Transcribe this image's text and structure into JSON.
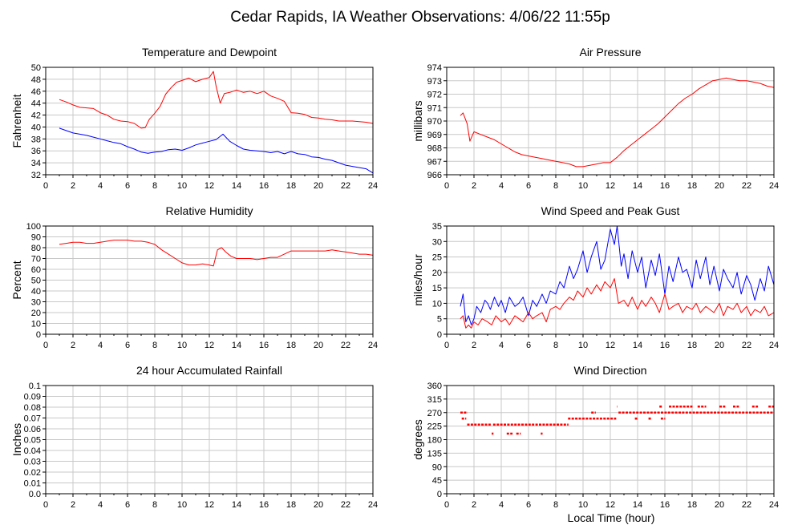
{
  "title": "Cedar Rapids, IA Weather Observations: 4/06/22 11:55p",
  "footer_xlabel": "Local Time (hour)",
  "colors": {
    "red": "#ff0000",
    "blue": "#0000ff",
    "grid": "#c8c8c8",
    "frame": "#000000"
  },
  "chart_data": [
    {
      "id": "temp",
      "type": "line",
      "title": "Temperature and Dewpoint",
      "xlabel": "",
      "ylabel": "Fahrenheit",
      "xlim": [
        0,
        24
      ],
      "ylim": [
        32,
        50
      ],
      "xticks": [
        2,
        4,
        6,
        8,
        10,
        12,
        14,
        16,
        18,
        20,
        22,
        24
      ],
      "yticks": [
        32,
        34,
        36,
        38,
        40,
        42,
        44,
        46,
        48,
        50
      ],
      "grid": true,
      "series": [
        {
          "color": "#ff0000",
          "x": [
            1.0,
            1.5,
            2.0,
            2.5,
            3.0,
            3.5,
            4.0,
            4.5,
            5.0,
            5.5,
            6.0,
            6.5,
            7.0,
            7.3,
            7.6,
            8.0,
            8.4,
            8.8,
            9.2,
            9.6,
            10.0,
            10.5,
            11.0,
            11.5,
            12.0,
            12.3,
            12.5,
            12.8,
            13.1,
            13.5,
            14.0,
            14.5,
            15.0,
            15.5,
            16.0,
            16.5,
            17.0,
            17.5,
            18.0,
            18.5,
            19.0,
            19.5,
            20.0,
            20.5,
            21.0,
            21.5,
            22.0,
            22.5,
            23.0,
            23.5,
            24.0
          ],
          "y": [
            44.6,
            44.2,
            43.7,
            43.3,
            43.2,
            43.1,
            42.4,
            42.0,
            41.3,
            41.0,
            40.9,
            40.6,
            39.8,
            39.9,
            41.3,
            42.3,
            43.5,
            45.5,
            46.6,
            47.5,
            47.8,
            48.2,
            47.6,
            48.0,
            48.3,
            49.3,
            46.8,
            44.0,
            45.6,
            45.8,
            46.2,
            45.8,
            46.0,
            45.6,
            46.0,
            45.2,
            44.8,
            44.3,
            42.4,
            42.3,
            42.1,
            41.6,
            41.5,
            41.3,
            41.2,
            41.0,
            41.0,
            41.0,
            40.9,
            40.8,
            40.6
          ]
        },
        {
          "color": "#0000ff",
          "x": [
            1.0,
            1.5,
            2.0,
            2.5,
            3.0,
            3.5,
            4.0,
            4.5,
            5.0,
            5.5,
            6.0,
            6.5,
            7.0,
            7.5,
            8.0,
            8.5,
            9.0,
            9.5,
            10.0,
            10.5,
            11.0,
            11.5,
            12.0,
            12.5,
            13.0,
            13.5,
            14.0,
            14.5,
            15.0,
            15.5,
            16.0,
            16.5,
            17.0,
            17.5,
            18.0,
            18.5,
            19.0,
            19.5,
            20.0,
            20.5,
            21.0,
            21.5,
            22.0,
            22.5,
            23.0,
            23.5,
            24.0
          ],
          "y": [
            39.8,
            39.4,
            39.0,
            38.8,
            38.6,
            38.3,
            38.0,
            37.7,
            37.4,
            37.2,
            36.7,
            36.3,
            35.8,
            35.6,
            35.8,
            35.9,
            36.2,
            36.3,
            36.1,
            36.5,
            37.0,
            37.3,
            37.6,
            37.9,
            38.8,
            37.6,
            36.9,
            36.3,
            36.1,
            36.0,
            35.9,
            35.7,
            35.9,
            35.5,
            35.9,
            35.5,
            35.4,
            35.0,
            34.9,
            34.6,
            34.4,
            34.0,
            33.6,
            33.4,
            33.2,
            33.0,
            32.3
          ]
        }
      ]
    },
    {
      "id": "pressure",
      "type": "line",
      "title": "Air Pressure",
      "xlabel": "",
      "ylabel": "millibars",
      "xlim": [
        0,
        24
      ],
      "ylim": [
        966,
        974
      ],
      "xticks": [
        2,
        4,
        6,
        8,
        10,
        12,
        14,
        16,
        18,
        20,
        22,
        24
      ],
      "yticks": [
        966,
        967,
        968,
        969,
        970,
        971,
        972,
        973,
        974
      ],
      "grid": true,
      "series": [
        {
          "color": "#ff0000",
          "x": [
            1.0,
            1.2,
            1.5,
            1.7,
            2.0,
            2.5,
            3.0,
            3.5,
            4.0,
            4.5,
            5.0,
            5.5,
            6.0,
            6.5,
            7.0,
            7.5,
            8.0,
            8.5,
            9.0,
            9.5,
            10.0,
            10.5,
            11.0,
            11.5,
            12.0,
            12.5,
            13.0,
            13.5,
            14.0,
            14.5,
            15.0,
            15.5,
            16.0,
            16.5,
            17.0,
            17.5,
            18.0,
            18.5,
            19.0,
            19.5,
            20.0,
            20.5,
            21.0,
            21.5,
            22.0,
            22.5,
            23.0,
            23.5,
            24.0
          ],
          "y": [
            970.4,
            970.6,
            969.8,
            968.5,
            969.2,
            969.0,
            968.8,
            968.6,
            968.3,
            968.0,
            967.7,
            967.5,
            967.4,
            967.3,
            967.2,
            967.1,
            967.0,
            966.9,
            966.8,
            966.6,
            966.6,
            966.7,
            966.8,
            966.9,
            966.9,
            967.3,
            967.8,
            968.2,
            968.6,
            969.0,
            969.4,
            969.8,
            970.3,
            970.8,
            971.3,
            971.7,
            972.0,
            972.4,
            972.7,
            973.0,
            973.1,
            973.2,
            973.1,
            973.0,
            973.0,
            972.9,
            972.8,
            972.6,
            972.5
          ]
        }
      ]
    },
    {
      "id": "humidity",
      "type": "line",
      "title": "Relative Humidity",
      "xlabel": "",
      "ylabel": "Percent",
      "xlim": [
        0,
        24
      ],
      "ylim": [
        0,
        100
      ],
      "xticks": [
        2,
        4,
        6,
        8,
        10,
        12,
        14,
        16,
        18,
        20,
        22,
        24
      ],
      "yticks": [
        0,
        10,
        20,
        30,
        40,
        50,
        60,
        70,
        80,
        90,
        100
      ],
      "grid": true,
      "series": [
        {
          "color": "#ff0000",
          "x": [
            1.0,
            1.5,
            2.0,
            2.5,
            3.0,
            3.5,
            4.0,
            4.5,
            5.0,
            5.5,
            6.0,
            6.5,
            7.0,
            7.5,
            8.0,
            8.5,
            9.0,
            9.5,
            10.0,
            10.5,
            11.0,
            11.5,
            12.0,
            12.3,
            12.6,
            12.9,
            13.2,
            13.6,
            14.0,
            14.5,
            15.0,
            15.5,
            16.0,
            16.5,
            17.0,
            17.5,
            18.0,
            18.5,
            19.0,
            19.5,
            20.0,
            20.5,
            21.0,
            21.5,
            22.0,
            22.5,
            23.0,
            23.5,
            24.0
          ],
          "y": [
            83,
            84,
            85,
            85,
            84,
            84,
            85,
            86,
            87,
            87,
            87,
            86,
            86,
            85,
            83,
            78,
            74,
            70,
            66,
            64,
            64,
            65,
            64,
            63,
            78,
            80,
            76,
            72,
            70,
            70,
            70,
            69,
            70,
            71,
            71,
            74,
            77,
            77,
            77,
            77,
            77,
            77,
            78,
            77,
            76,
            75,
            74,
            74,
            73
          ]
        }
      ]
    },
    {
      "id": "wind",
      "type": "line",
      "title": "Wind Speed and Peak Gust",
      "xlabel": "",
      "ylabel": "miles/hour",
      "xlim": [
        0,
        24
      ],
      "ylim": [
        0,
        35
      ],
      "xticks": [
        2,
        4,
        6,
        8,
        10,
        12,
        14,
        16,
        18,
        20,
        22,
        24
      ],
      "yticks": [
        0,
        5,
        10,
        15,
        20,
        25,
        30,
        35
      ],
      "grid": true,
      "series": [
        {
          "color": "#0000ff",
          "x": [
            1.0,
            1.2,
            1.4,
            1.6,
            1.8,
            2.0,
            2.2,
            2.5,
            2.8,
            3.0,
            3.2,
            3.5,
            3.8,
            4.0,
            4.3,
            4.6,
            5.0,
            5.3,
            5.6,
            6.0,
            6.3,
            6.6,
            7.0,
            7.3,
            7.6,
            8.0,
            8.3,
            8.6,
            9.0,
            9.3,
            9.6,
            10.0,
            10.3,
            10.6,
            11.0,
            11.3,
            11.6,
            12.0,
            12.3,
            12.5,
            12.8,
            13.0,
            13.3,
            13.6,
            14.0,
            14.3,
            14.6,
            15.0,
            15.3,
            15.6,
            16.0,
            16.3,
            16.6,
            17.0,
            17.3,
            17.6,
            18.0,
            18.3,
            18.6,
            19.0,
            19.3,
            19.6,
            20.0,
            20.3,
            20.6,
            21.0,
            21.3,
            21.6,
            22.0,
            22.3,
            22.6,
            23.0,
            23.3,
            23.6,
            24.0
          ],
          "y": [
            9,
            13,
            4,
            6,
            3,
            5,
            9,
            7,
            11,
            10,
            8,
            12,
            9,
            11,
            7,
            12,
            9,
            10,
            12,
            6,
            11,
            9,
            13,
            10,
            14,
            13,
            17,
            15,
            22,
            18,
            21,
            27,
            20,
            25,
            30,
            21,
            24,
            34,
            29,
            35,
            22,
            26,
            18,
            27,
            20,
            25,
            15,
            24,
            19,
            26,
            13,
            22,
            17,
            25,
            20,
            21,
            15,
            24,
            18,
            25,
            16,
            22,
            14,
            21,
            18,
            15,
            20,
            13,
            19,
            16,
            11,
            18,
            14,
            22,
            16
          ]
        },
        {
          "color": "#ff0000",
          "x": [
            1.0,
            1.2,
            1.4,
            1.6,
            1.8,
            2.0,
            2.3,
            2.6,
            3.0,
            3.3,
            3.6,
            4.0,
            4.3,
            4.6,
            5.0,
            5.3,
            5.6,
            6.0,
            6.3,
            6.6,
            7.0,
            7.3,
            7.6,
            8.0,
            8.3,
            8.6,
            9.0,
            9.3,
            9.6,
            10.0,
            10.3,
            10.6,
            11.0,
            11.3,
            11.6,
            12.0,
            12.3,
            12.6,
            13.0,
            13.3,
            13.6,
            14.0,
            14.3,
            14.6,
            15.0,
            15.3,
            15.6,
            16.0,
            16.3,
            16.6,
            17.0,
            17.3,
            17.6,
            18.0,
            18.3,
            18.6,
            19.0,
            19.3,
            19.6,
            20.0,
            20.3,
            20.6,
            21.0,
            21.3,
            21.6,
            22.0,
            22.3,
            22.6,
            23.0,
            23.3,
            23.6,
            24.0
          ],
          "y": [
            5,
            6,
            2,
            3,
            2,
            4,
            3,
            5,
            4,
            3,
            6,
            4,
            5,
            3,
            6,
            5,
            4,
            7,
            5,
            6,
            7,
            4,
            8,
            9,
            8,
            10,
            12,
            11,
            14,
            12,
            15,
            13,
            16,
            14,
            17,
            15,
            18,
            10,
            11,
            9,
            12,
            8,
            11,
            9,
            12,
            10,
            7,
            13,
            8,
            9,
            10,
            7,
            9,
            8,
            10,
            7,
            9,
            8,
            7,
            10,
            6,
            9,
            8,
            10,
            7,
            9,
            6,
            8,
            7,
            9,
            6,
            7
          ]
        }
      ]
    },
    {
      "id": "rain",
      "type": "line",
      "title": "24 hour Accumulated Rainfall",
      "xlabel": "",
      "ylabel": "Inches",
      "xlim": [
        0,
        24
      ],
      "ylim": [
        0,
        0.1
      ],
      "xticks": [
        2,
        4,
        6,
        8,
        10,
        12,
        14,
        16,
        18,
        20,
        22,
        24
      ],
      "yticks": [
        0.0,
        0.01,
        0.02,
        0.03,
        0.04,
        0.05,
        0.06,
        0.07,
        0.08,
        0.09,
        0.1
      ],
      "ytick_labels": [
        "0.0",
        "0.01",
        "0.02",
        "0.03",
        "0.04",
        "0.05",
        "0.06",
        "0.07",
        "0.08",
        "0.09",
        "0.1"
      ],
      "grid": true,
      "series": [
        {
          "color": "#ff0000",
          "x": [
            1.0,
            24.0
          ],
          "y": [
            0.0,
            0.0
          ]
        }
      ]
    },
    {
      "id": "direction",
      "type": "scatter",
      "title": "Wind Direction",
      "xlabel": "Local Time (hour)",
      "ylabel": "degrees",
      "xlim": [
        0,
        24
      ],
      "ylim": [
        0,
        360
      ],
      "xticks": [
        2,
        4,
        6,
        8,
        10,
        12,
        14,
        16,
        18,
        20,
        22,
        24
      ],
      "yticks": [
        0,
        45,
        90,
        135,
        180,
        225,
        270,
        315,
        360
      ],
      "grid": true,
      "series": [
        {
          "color": "#ff0000",
          "runs": [
            {
              "x0": 1.0,
              "x1": 1.5,
              "y": 270
            },
            {
              "x0": 1.1,
              "x1": 1.4,
              "y": 250
            },
            {
              "x0": 1.5,
              "x1": 3.2,
              "y": 230
            },
            {
              "x0": 3.3,
              "x1": 3.4,
              "y": 200
            },
            {
              "x0": 3.4,
              "x1": 8.9,
              "y": 230
            },
            {
              "x0": 4.4,
              "x1": 4.8,
              "y": 200
            },
            {
              "x0": 5.1,
              "x1": 5.4,
              "y": 200
            },
            {
              "x0": 6.9,
              "x1": 7.0,
              "y": 200
            },
            {
              "x0": 8.9,
              "x1": 12.4,
              "y": 250
            },
            {
              "x0": 10.6,
              "x1": 10.9,
              "y": 270
            },
            {
              "x0": 12.5,
              "x1": 12.5,
              "y": 290
            },
            {
              "x0": 12.6,
              "x1": 24.0,
              "y": 270
            },
            {
              "x0": 13.8,
              "x1": 14.0,
              "y": 250
            },
            {
              "x0": 14.8,
              "x1": 15.0,
              "y": 250
            },
            {
              "x0": 15.6,
              "x1": 15.8,
              "y": 290
            },
            {
              "x0": 15.7,
              "x1": 16.0,
              "y": 250
            },
            {
              "x0": 16.3,
              "x1": 18.0,
              "y": 290
            },
            {
              "x0": 18.4,
              "x1": 19.0,
              "y": 290
            },
            {
              "x0": 20.0,
              "x1": 20.4,
              "y": 290
            },
            {
              "x0": 21.0,
              "x1": 21.4,
              "y": 290
            },
            {
              "x0": 22.4,
              "x1": 22.8,
              "y": 290
            },
            {
              "x0": 23.6,
              "x1": 24.0,
              "y": 290
            }
          ]
        }
      ]
    }
  ]
}
